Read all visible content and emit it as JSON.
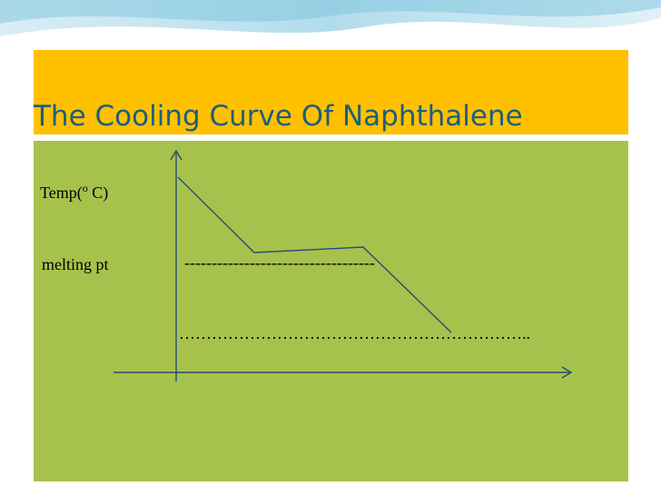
{
  "header": {
    "title": "The Cooling Curve Of Naphthalene"
  },
  "diagram": {
    "y_label": {
      "prefix": "Temp(",
      "superscript": "o",
      "suffix": " C)"
    },
    "melting_label": "melting pt",
    "melting_line": "-----------------------------------",
    "dotted_line": "……………………………………………………….."
  }
}
